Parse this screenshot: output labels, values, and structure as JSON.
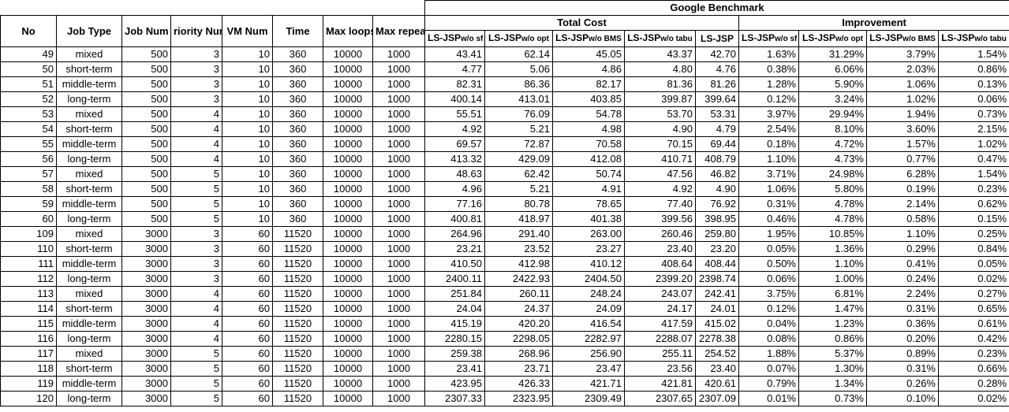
{
  "title": "Google Benchmark",
  "headers": {
    "no": "No",
    "job_type": "Job Type",
    "job_num": "Job Num",
    "priority_num": "riority Nur",
    "vm_num": "VM Num",
    "time": "Time",
    "max_loops": "Max loops",
    "max_repeat": "Max repea",
    "total_cost": "Total Cost",
    "improvement": "Improvement",
    "cost_cols": [
      {
        "main": "LS-JSP",
        "suffix": "w/o sf"
      },
      {
        "main": "LS-JSP",
        "suffix": "w/o opt"
      },
      {
        "main": "LS-JSP",
        "suffix": "w/o BMS"
      },
      {
        "main": "LS-JSP",
        "suffix": "w/o tabu"
      },
      {
        "main": "LS-JSP",
        "suffix": ""
      }
    ],
    "impr_cols": [
      {
        "main": "LS-JSP",
        "suffix": "w/o sf"
      },
      {
        "main": "LS-JSP",
        "suffix": "w/o opt"
      },
      {
        "main": "LS-JSP",
        "suffix": "w/o BMS"
      },
      {
        "main": "LS-JSP",
        "suffix": "w/o tabu"
      }
    ]
  },
  "rows": [
    {
      "no": "49",
      "type": "mixed",
      "job": "500",
      "pri": "3",
      "vm": "10",
      "time": "360",
      "loops": "10000",
      "rep": "1000",
      "cost": [
        "43.41",
        "62.14",
        "45.05",
        "43.37",
        "42.70"
      ],
      "impr": [
        "1.63%",
        "31.29%",
        "3.79%",
        "1.54%"
      ]
    },
    {
      "no": "50",
      "type": "short-term",
      "job": "500",
      "pri": "3",
      "vm": "10",
      "time": "360",
      "loops": "10000",
      "rep": "1000",
      "cost": [
        "4.77",
        "5.06",
        "4.86",
        "4.80",
        "4.76"
      ],
      "impr": [
        "0.38%",
        "6.06%",
        "2.03%",
        "0.86%"
      ]
    },
    {
      "no": "51",
      "type": "middle-term",
      "job": "500",
      "pri": "3",
      "vm": "10",
      "time": "360",
      "loops": "10000",
      "rep": "1000",
      "cost": [
        "82.31",
        "86.36",
        "82.17",
        "81.36",
        "81.26"
      ],
      "impr": [
        "1.28%",
        "5.90%",
        "1.06%",
        "0.13%"
      ]
    },
    {
      "no": "52",
      "type": "long-term",
      "job": "500",
      "pri": "3",
      "vm": "10",
      "time": "360",
      "loops": "10000",
      "rep": "1000",
      "cost": [
        "400.14",
        "413.01",
        "403.85",
        "399.87",
        "399.64"
      ],
      "impr": [
        "0.12%",
        "3.24%",
        "1.02%",
        "0.06%"
      ]
    },
    {
      "no": "53",
      "type": "mixed",
      "job": "500",
      "pri": "4",
      "vm": "10",
      "time": "360",
      "loops": "10000",
      "rep": "1000",
      "cost": [
        "55.51",
        "76.09",
        "54.78",
        "53.70",
        "53.31"
      ],
      "impr": [
        "3.97%",
        "29.94%",
        "1.94%",
        "0.73%"
      ]
    },
    {
      "no": "54",
      "type": "short-term",
      "job": "500",
      "pri": "4",
      "vm": "10",
      "time": "360",
      "loops": "10000",
      "rep": "1000",
      "cost": [
        "4.92",
        "5.21",
        "4.98",
        "4.90",
        "4.79"
      ],
      "impr": [
        "2.54%",
        "8.10%",
        "3.60%",
        "2.15%"
      ]
    },
    {
      "no": "55",
      "type": "middle-term",
      "job": "500",
      "pri": "4",
      "vm": "10",
      "time": "360",
      "loops": "10000",
      "rep": "1000",
      "cost": [
        "69.57",
        "72.87",
        "70.58",
        "70.15",
        "69.44"
      ],
      "impr": [
        "0.18%",
        "4.72%",
        "1.57%",
        "1.02%"
      ]
    },
    {
      "no": "56",
      "type": "long-term",
      "job": "500",
      "pri": "4",
      "vm": "10",
      "time": "360",
      "loops": "10000",
      "rep": "1000",
      "cost": [
        "413.32",
        "429.09",
        "412.08",
        "410.71",
        "408.79"
      ],
      "impr": [
        "1.10%",
        "4.73%",
        "0.77%",
        "0.47%"
      ]
    },
    {
      "no": "57",
      "type": "mixed",
      "job": "500",
      "pri": "5",
      "vm": "10",
      "time": "360",
      "loops": "10000",
      "rep": "1000",
      "cost": [
        "48.63",
        "62.42",
        "50.74",
        "47.56",
        "46.82"
      ],
      "impr": [
        "3.71%",
        "24.98%",
        "6.28%",
        "1.54%"
      ]
    },
    {
      "no": "58",
      "type": "short-term",
      "job": "500",
      "pri": "5",
      "vm": "10",
      "time": "360",
      "loops": "10000",
      "rep": "1000",
      "cost": [
        "4.96",
        "5.21",
        "4.91",
        "4.92",
        "4.90"
      ],
      "impr": [
        "1.06%",
        "5.80%",
        "0.19%",
        "0.23%"
      ]
    },
    {
      "no": "59",
      "type": "middle-term",
      "job": "500",
      "pri": "5",
      "vm": "10",
      "time": "360",
      "loops": "10000",
      "rep": "1000",
      "cost": [
        "77.16",
        "80.78",
        "78.65",
        "77.40",
        "76.92"
      ],
      "impr": [
        "0.31%",
        "4.78%",
        "2.14%",
        "0.62%"
      ]
    },
    {
      "no": "60",
      "type": "long-term",
      "job": "500",
      "pri": "5",
      "vm": "10",
      "time": "360",
      "loops": "10000",
      "rep": "1000",
      "cost": [
        "400.81",
        "418.97",
        "401.38",
        "399.56",
        "398.95"
      ],
      "impr": [
        "0.46%",
        "4.78%",
        "0.58%",
        "0.15%"
      ]
    },
    {
      "no": "109",
      "type": "mixed",
      "job": "3000",
      "pri": "3",
      "vm": "60",
      "time": "11520",
      "loops": "10000",
      "rep": "1000",
      "cost": [
        "264.96",
        "291.40",
        "263.00",
        "260.46",
        "259.80"
      ],
      "impr": [
        "1.95%",
        "10.85%",
        "1.10%",
        "0.25%"
      ]
    },
    {
      "no": "110",
      "type": "short-term",
      "job": "3000",
      "pri": "3",
      "vm": "60",
      "time": "11520",
      "loops": "10000",
      "rep": "1000",
      "cost": [
        "23.21",
        "23.52",
        "23.27",
        "23.40",
        "23.20"
      ],
      "impr": [
        "0.05%",
        "1.36%",
        "0.29%",
        "0.84%"
      ]
    },
    {
      "no": "111",
      "type": "middle-term",
      "job": "3000",
      "pri": "3",
      "vm": "60",
      "time": "11520",
      "loops": "10000",
      "rep": "1000",
      "cost": [
        "410.50",
        "412.98",
        "410.12",
        "408.64",
        "408.44"
      ],
      "impr": [
        "0.50%",
        "1.10%",
        "0.41%",
        "0.05%"
      ]
    },
    {
      "no": "112",
      "type": "long-term",
      "job": "3000",
      "pri": "3",
      "vm": "60",
      "time": "11520",
      "loops": "10000",
      "rep": "1000",
      "cost": [
        "2400.11",
        "2422.93",
        "2404.50",
        "2399.20",
        "2398.74"
      ],
      "impr": [
        "0.06%",
        "1.00%",
        "0.24%",
        "0.02%"
      ]
    },
    {
      "no": "113",
      "type": "mixed",
      "job": "3000",
      "pri": "4",
      "vm": "60",
      "time": "11520",
      "loops": "10000",
      "rep": "1000",
      "cost": [
        "251.84",
        "260.11",
        "248.24",
        "243.07",
        "242.41"
      ],
      "impr": [
        "3.75%",
        "6.81%",
        "2.24%",
        "0.27%"
      ]
    },
    {
      "no": "114",
      "type": "short-term",
      "job": "3000",
      "pri": "4",
      "vm": "60",
      "time": "11520",
      "loops": "10000",
      "rep": "1000",
      "cost": [
        "24.04",
        "24.37",
        "24.09",
        "24.17",
        "24.01"
      ],
      "impr": [
        "0.12%",
        "1.47%",
        "0.31%",
        "0.65%"
      ]
    },
    {
      "no": "115",
      "type": "middle-term",
      "job": "3000",
      "pri": "4",
      "vm": "60",
      "time": "11520",
      "loops": "10000",
      "rep": "1000",
      "cost": [
        "415.19",
        "420.20",
        "416.54",
        "417.59",
        "415.02"
      ],
      "impr": [
        "0.04%",
        "1.23%",
        "0.36%",
        "0.61%"
      ]
    },
    {
      "no": "116",
      "type": "long-term",
      "job": "3000",
      "pri": "4",
      "vm": "60",
      "time": "11520",
      "loops": "10000",
      "rep": "1000",
      "cost": [
        "2280.15",
        "2298.05",
        "2282.97",
        "2288.07",
        "2278.38"
      ],
      "impr": [
        "0.08%",
        "0.86%",
        "0.20%",
        "0.42%"
      ]
    },
    {
      "no": "117",
      "type": "mixed",
      "job": "3000",
      "pri": "5",
      "vm": "60",
      "time": "11520",
      "loops": "10000",
      "rep": "1000",
      "cost": [
        "259.38",
        "268.96",
        "256.90",
        "255.11",
        "254.52"
      ],
      "impr": [
        "1.88%",
        "5.37%",
        "0.89%",
        "0.23%"
      ]
    },
    {
      "no": "118",
      "type": "short-term",
      "job": "3000",
      "pri": "5",
      "vm": "60",
      "time": "11520",
      "loops": "10000",
      "rep": "1000",
      "cost": [
        "23.41",
        "23.71",
        "23.47",
        "23.56",
        "23.40"
      ],
      "impr": [
        "0.07%",
        "1.30%",
        "0.31%",
        "0.66%"
      ]
    },
    {
      "no": "119",
      "type": "middle-term",
      "job": "3000",
      "pri": "5",
      "vm": "60",
      "time": "11520",
      "loops": "10000",
      "rep": "1000",
      "cost": [
        "423.95",
        "426.33",
        "421.71",
        "421.81",
        "420.61"
      ],
      "impr": [
        "0.79%",
        "1.34%",
        "0.26%",
        "0.28%"
      ]
    },
    {
      "no": "120",
      "type": "long-term",
      "job": "3000",
      "pri": "5",
      "vm": "60",
      "time": "11520",
      "loops": "10000",
      "rep": "1000",
      "cost": [
        "2307.33",
        "2323.95",
        "2309.49",
        "2307.65",
        "2307.09"
      ],
      "impr": [
        "0.01%",
        "0.73%",
        "0.10%",
        "0.02%"
      ]
    }
  ]
}
